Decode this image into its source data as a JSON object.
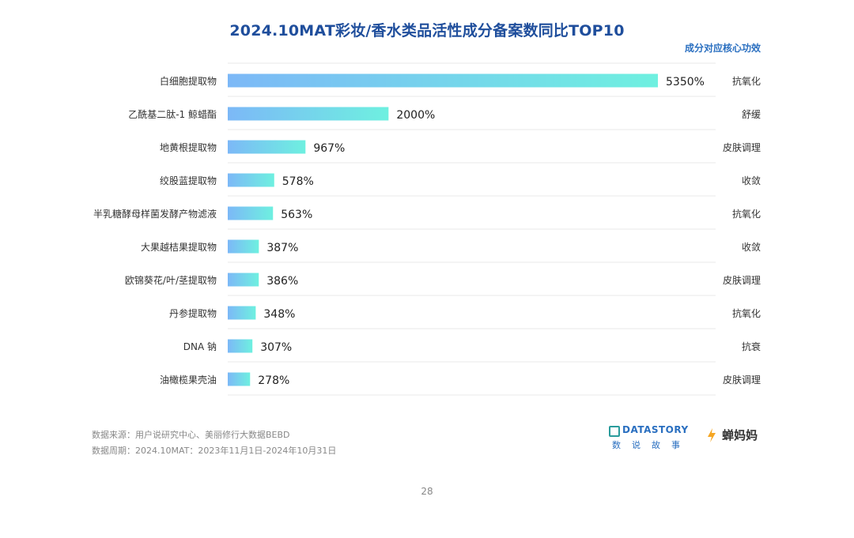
{
  "title": "2024.10MAT彩妆/香水类品活性成分备案数同比TOP10",
  "subtitle": "成分对应核心功效",
  "chart_data": {
    "type": "bar",
    "orientation": "horizontal",
    "title": "2024.10MAT彩妆/香水类品活性成分备案数同比TOP10",
    "xlabel": "",
    "ylabel": "",
    "categories": [
      "白细胞提取物",
      "乙酰基二肽-1 鲸蜡酯",
      "地黄根提取物",
      "绞股蓝提取物",
      "半乳糖酵母样菌发酵产物滤液",
      "大果越桔果提取物",
      "欧锦葵花/叶/茎提取物",
      "丹参提取物",
      "DNA 钠",
      "油橄榄果壳油"
    ],
    "values": [
      5350,
      2000,
      967,
      578,
      563,
      387,
      386,
      348,
      307,
      278
    ],
    "value_labels": [
      "5350%",
      "2000%",
      "967%",
      "578%",
      "563%",
      "387%",
      "386%",
      "348%",
      "307%",
      "278%"
    ],
    "effects": [
      "抗氧化",
      "舒缓",
      "皮肤调理",
      "收敛",
      "抗氧化",
      "收敛",
      "皮肤调理",
      "抗氧化",
      "抗衰",
      "皮肤调理"
    ],
    "xlim": [
      0,
      5350
    ],
    "grid": false,
    "legend": "none",
    "colors": {
      "bar_start": "#7cb8f7",
      "bar_end": "#6ef0e0"
    }
  },
  "source_line1": "数据来源：用户说研究中心、美丽修行大数据BEBD",
  "source_line2": "数据周期：2024.10MAT：2023年11月1日-2024年10月31日",
  "logos": {
    "datastory_name": "DATASTORY",
    "datastory_sub": "数说故事",
    "chanmama_name": "蝉妈妈"
  },
  "page_number": "28"
}
